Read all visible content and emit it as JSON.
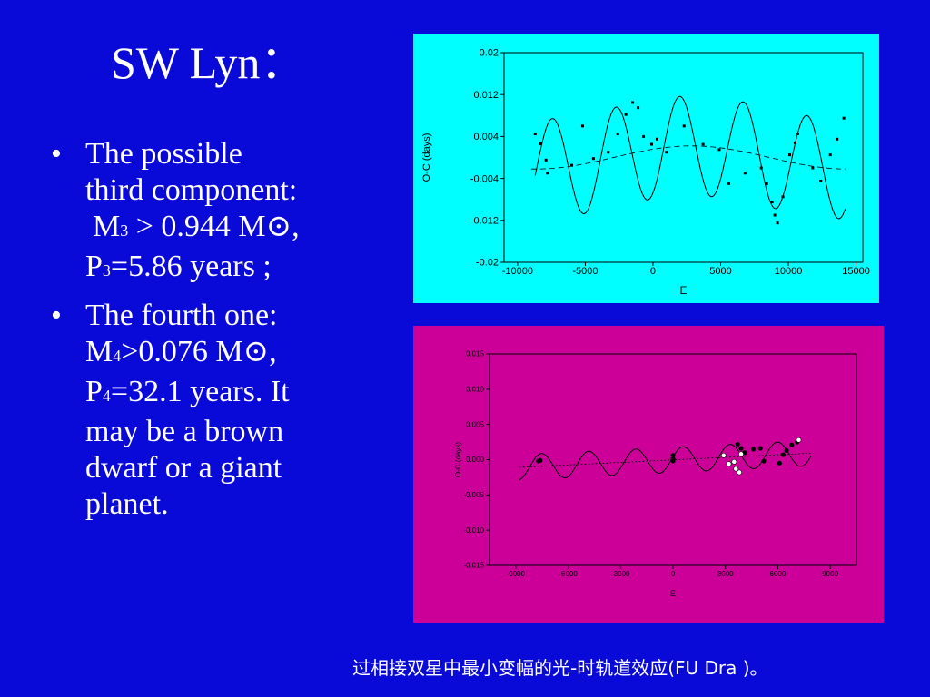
{
  "slide": {
    "title": "SW Lyn：",
    "bullet_symbol": "•",
    "bullet1": {
      "line1": "The possible",
      "line2": "third component:",
      "mass_a": "M",
      "mass_sub": "3",
      "mass_b": " > 0.944 M",
      "sun_symbol": "⊙",
      "mass_c": ",",
      "period_a": "P",
      "period_sub": "3",
      "period_b": "=5.86 years ;"
    },
    "bullet2": {
      "line1": "The fourth one:",
      "mass_a": "M",
      "mass_sub": "4",
      "mass_b": ">0.076 M",
      "sun_symbol": "⊙",
      "mass_c": ",",
      "period_a": "P",
      "period_sub": "4",
      "period_b": "=32.1 years. It",
      "line4": "may be a brown",
      "line5": "dwarf or a giant",
      "line6": "planet."
    },
    "caption": "过相接双星中最小变幅的光-时轨道效应(FU Dra )。",
    "colors": {
      "background": "#0a0ad8",
      "panel1": "#00ffff",
      "panel2": "#cc0099",
      "text": "#ffffff"
    }
  },
  "chart_data": [
    {
      "type": "scatter",
      "xlabel": "E",
      "ylabel": "O-C (days)",
      "xlim": [
        -11000,
        15500
      ],
      "ylim": [
        -0.02,
        0.02
      ],
      "x_ticks": [
        "-10000",
        "-5000",
        "0",
        "5000",
        "10000",
        "15000"
      ],
      "y_ticks": [
        "0.02",
        "0.012",
        "0.004",
        "-0.004",
        "-0.012",
        "-0.02"
      ],
      "fit_solid": {
        "amplitude": 0.0095,
        "period_E": 4700,
        "phase_E": -8600,
        "long_amplitude": 0.0022,
        "long_period_E": 23000,
        "long_phase_E": -2900,
        "offset": 0.0
      },
      "fit_dashed": {
        "amplitude": 0.0022,
        "period_E": 23000,
        "phase_E": -2900,
        "offset": 0.0
      },
      "points": [
        [
          -8700,
          0.0045
        ],
        [
          -8300,
          0.0026
        ],
        [
          -7900,
          -0.0005
        ],
        [
          -7800,
          -0.003
        ],
        [
          -6000,
          -0.0015
        ],
        [
          -5200,
          0.006
        ],
        [
          -4400,
          -0.0002
        ],
        [
          -3300,
          0.001
        ],
        [
          -2600,
          0.0045
        ],
        [
          -2000,
          0.0082
        ],
        [
          -1500,
          0.0105
        ],
        [
          -1100,
          0.0095
        ],
        [
          -700,
          0.004
        ],
        [
          -100,
          0.0025
        ],
        [
          300,
          0.0035
        ],
        [
          1000,
          0.001
        ],
        [
          2300,
          0.006
        ],
        [
          3700,
          0.0025
        ],
        [
          4900,
          0.0015
        ],
        [
          5600,
          -0.005
        ],
        [
          6800,
          -0.003
        ],
        [
          8000,
          -0.002
        ],
        [
          8400,
          -0.005
        ],
        [
          8800,
          -0.0085
        ],
        [
          9000,
          -0.011
        ],
        [
          9200,
          -0.0125
        ],
        [
          9600,
          -0.0075
        ],
        [
          10100,
          0.0005
        ],
        [
          10500,
          0.0028
        ],
        [
          10700,
          0.0045
        ],
        [
          11800,
          -0.002
        ],
        [
          12400,
          -0.0045
        ],
        [
          13100,
          0.0005
        ],
        [
          13600,
          0.0035
        ],
        [
          14100,
          0.0075
        ]
      ]
    },
    {
      "type": "scatter",
      "xlabel": "E",
      "ylabel": "O-C (days)",
      "xlim": [
        -10500,
        10500
      ],
      "ylim": [
        -0.015,
        0.015
      ],
      "x_ticks": [
        "-9000",
        "-6000",
        "-3000",
        "0",
        "3000",
        "6000",
        "9000"
      ],
      "y_ticks": [
        "0.015",
        "0.010",
        "0.005",
        "0.000",
        "-0.005",
        "-0.010",
        "-0.015"
      ],
      "fit_solid": {
        "amplitude": 0.0018,
        "period_E": 2700,
        "phase_E": -8200,
        "slope": 1.2e-07,
        "intercept": -3e-05
      },
      "fit_dotted": {
        "slope": 1.2e-07,
        "intercept": -3e-05
      },
      "points_filled": [
        [
          -7700,
          -0.0002
        ],
        [
          -7600,
          -0.0001
        ],
        [
          0,
          0.0006
        ],
        [
          0,
          0.0001
        ],
        [
          0,
          -0.0002
        ],
        [
          3700,
          0.0022
        ],
        [
          3900,
          0.0016
        ],
        [
          4100,
          0.001
        ],
        [
          4600,
          0.0015
        ],
        [
          5000,
          0.0016
        ],
        [
          5200,
          -0.0002
        ],
        [
          6100,
          -0.0005
        ],
        [
          6300,
          0.0007
        ],
        [
          6500,
          0.0013
        ],
        [
          6800,
          0.0021
        ],
        [
          7100,
          0.0025
        ]
      ],
      "points_open": [
        [
          2900,
          0.0006
        ],
        [
          3200,
          -0.0006
        ],
        [
          3500,
          -0.0003
        ],
        [
          3600,
          -0.0013
        ],
        [
          3800,
          -0.0018
        ],
        [
          3900,
          0.0008
        ],
        [
          7200,
          0.0028
        ]
      ]
    }
  ]
}
